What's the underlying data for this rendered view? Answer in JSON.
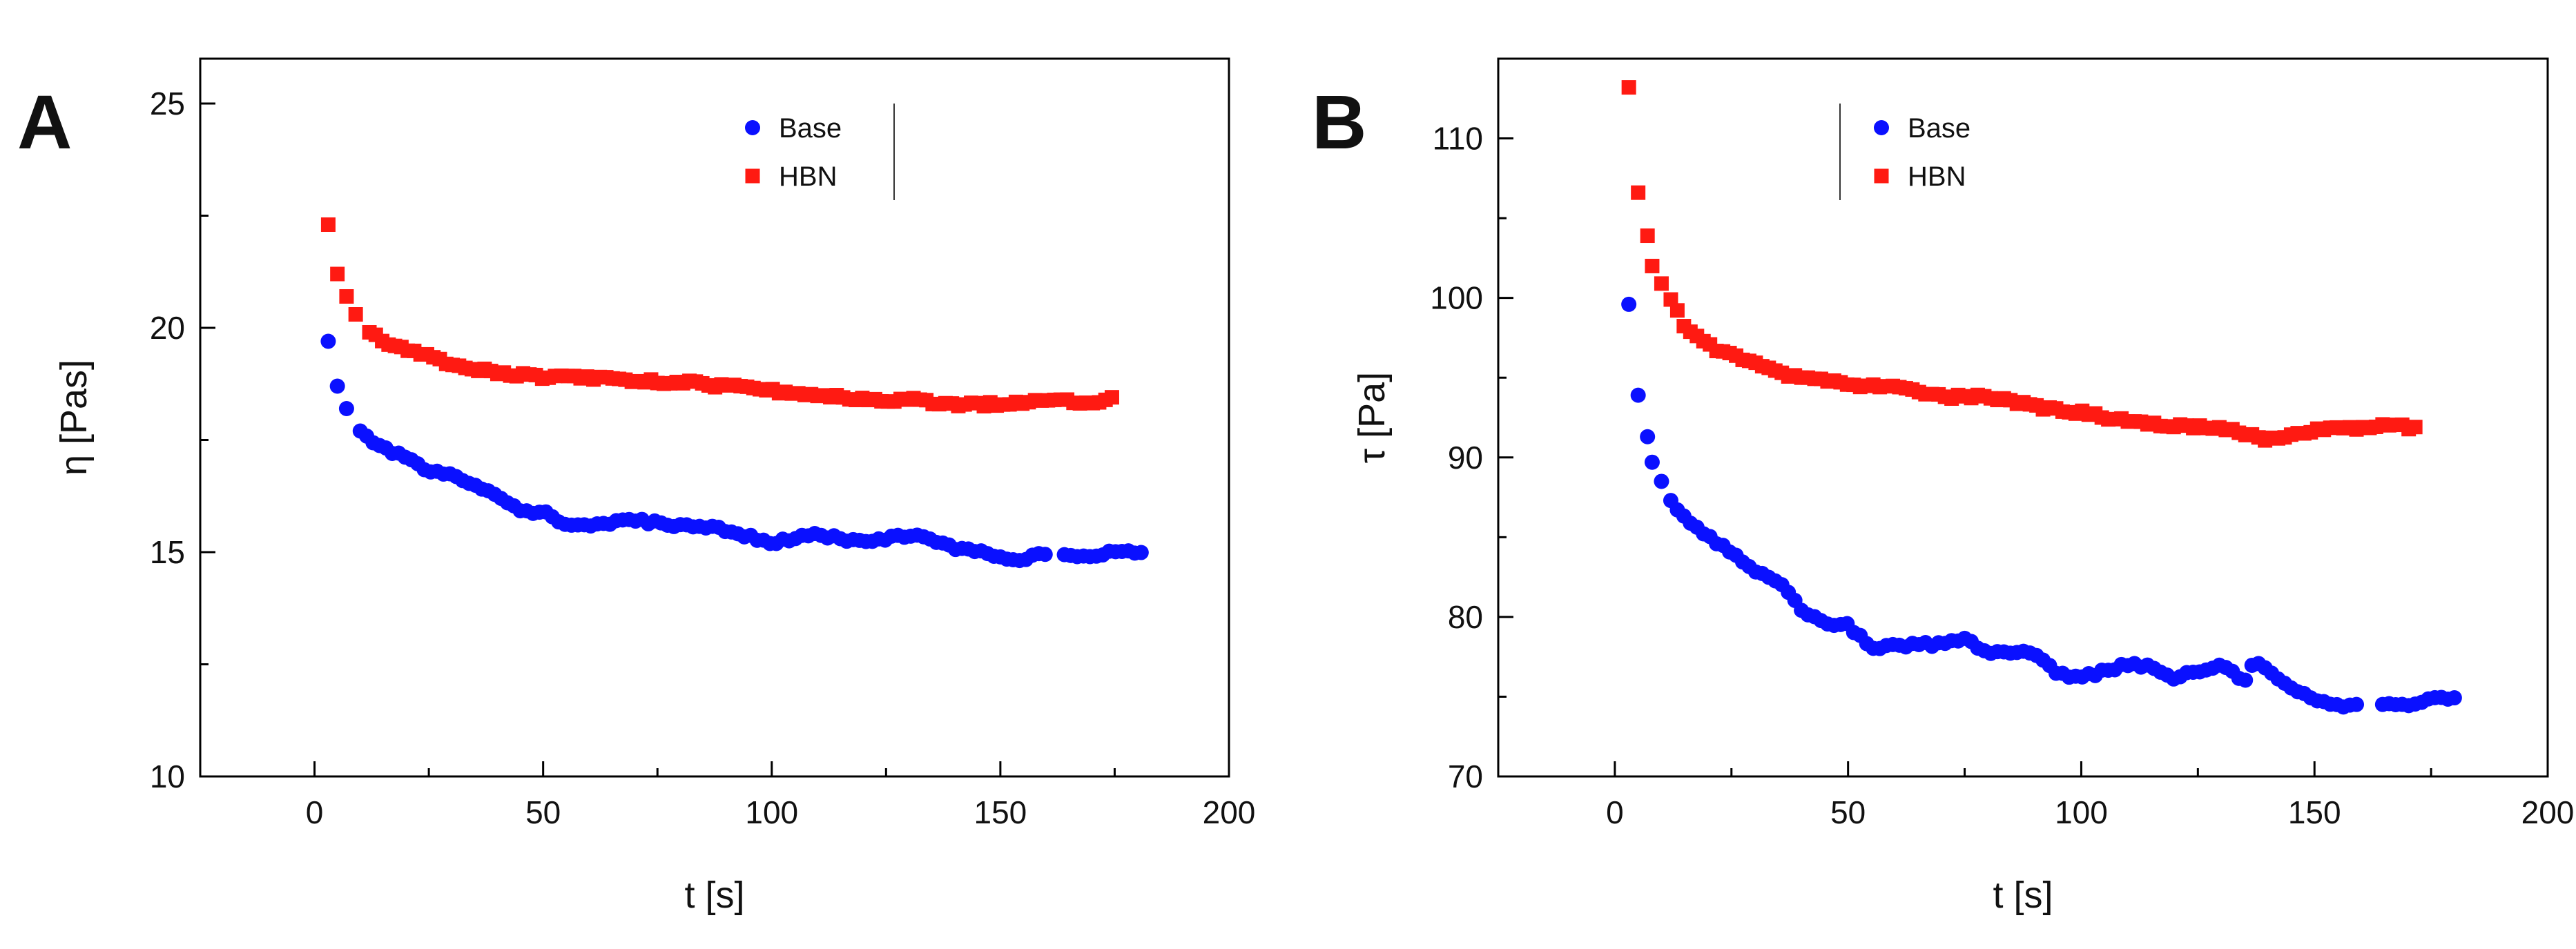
{
  "colors": {
    "Base": "#0a10ff",
    "HBN": "#ff1a12"
  },
  "chart_data": [
    {
      "panel": "A",
      "type": "scatter",
      "xlabel": "t [s]",
      "ylabel": "η [Pas]",
      "xlim": [
        -25,
        200
      ],
      "ylim": [
        10,
        26
      ],
      "xticks": [
        0,
        50,
        100,
        150,
        200
      ],
      "yticks": [
        10,
        15,
        20,
        25
      ],
      "legend_position": "top-center",
      "series": [
        {
          "name": "Base",
          "marker": "circle",
          "anchors": [
            [
              3,
              19.7
            ],
            [
              5,
              18.7
            ],
            [
              7,
              18.2
            ],
            [
              10,
              17.7
            ],
            [
              15,
              17.3
            ],
            [
              20,
              17.1
            ],
            [
              25,
              16.8
            ],
            [
              30,
              16.7
            ],
            [
              35,
              16.5
            ],
            [
              40,
              16.3
            ],
            [
              45,
              15.9
            ],
            [
              50,
              15.9
            ],
            [
              55,
              15.6
            ],
            [
              60,
              15.6
            ],
            [
              70,
              15.7
            ],
            [
              80,
              15.6
            ],
            [
              90,
              15.5
            ],
            [
              100,
              15.2
            ],
            [
              110,
              15.4
            ],
            [
              120,
              15.2
            ],
            [
              130,
              15.4
            ],
            [
              140,
              15.1
            ],
            [
              150,
              14.9
            ],
            [
              155,
              14.85
            ],
            [
              160,
              15.0
            ],
            [
              170,
              14.9
            ],
            [
              175,
              15.0
            ],
            [
              181,
              15.0
            ]
          ],
          "gaps": [
            [
              160,
              164
            ]
          ]
        },
        {
          "name": "HBN",
          "marker": "square",
          "anchors": [
            [
              3,
              22.3
            ],
            [
              5,
              21.2
            ],
            [
              7,
              20.7
            ],
            [
              9,
              20.3
            ],
            [
              12,
              19.9
            ],
            [
              15,
              19.7
            ],
            [
              20,
              19.5
            ],
            [
              30,
              19.2
            ],
            [
              40,
              19.0
            ],
            [
              50,
              18.9
            ],
            [
              60,
              18.9
            ],
            [
              70,
              18.8
            ],
            [
              80,
              18.8
            ],
            [
              90,
              18.7
            ],
            [
              100,
              18.6
            ],
            [
              110,
              18.5
            ],
            [
              120,
              18.4
            ],
            [
              130,
              18.4
            ],
            [
              140,
              18.3
            ],
            [
              150,
              18.3
            ],
            [
              160,
              18.4
            ],
            [
              170,
              18.35
            ],
            [
              175,
              18.45
            ]
          ],
          "gaps": []
        }
      ]
    },
    {
      "panel": "B",
      "type": "scatter",
      "xlabel": "t [s]",
      "ylabel": "τ [Pa]",
      "xlim": [
        -25,
        200
      ],
      "ylim": [
        70,
        115
      ],
      "xticks": [
        0,
        50,
        100,
        150,
        200
      ],
      "yticks": [
        70,
        80,
        90,
        100,
        110
      ],
      "legend_position": "top-center",
      "series": [
        {
          "name": "Base",
          "marker": "circle",
          "anchors": [
            [
              3,
              99.6
            ],
            [
              5,
              93.9
            ],
            [
              7,
              91.3
            ],
            [
              8,
              89.7
            ],
            [
              10,
              88.5
            ],
            [
              12,
              87.3
            ],
            [
              15,
              86.2
            ],
            [
              20,
              85.0
            ],
            [
              25,
              84.0
            ],
            [
              30,
              82.9
            ],
            [
              35,
              82.3
            ],
            [
              40,
              80.5
            ],
            [
              45,
              79.6
            ],
            [
              50,
              79.5
            ],
            [
              55,
              78.0
            ],
            [
              60,
              78.2
            ],
            [
              70,
              78.3
            ],
            [
              75,
              78.6
            ],
            [
              80,
              77.8
            ],
            [
              90,
              77.7
            ],
            [
              95,
              76.5
            ],
            [
              100,
              76.2
            ],
            [
              110,
              77.0
            ],
            [
              115,
              76.9
            ],
            [
              120,
              76.2
            ],
            [
              130,
              76.9
            ],
            [
              135,
              76.0
            ],
            [
              137,
              77.2
            ],
            [
              145,
              75.5
            ],
            [
              150,
              74.8
            ],
            [
              157,
              74.3
            ],
            [
              160,
              74.8
            ],
            [
              165,
              74.5
            ],
            [
              170,
              74.5
            ],
            [
              175,
              74.8
            ],
            [
              181,
              75.0
            ]
          ],
          "gaps": [
            [
              160,
              164
            ]
          ]
        },
        {
          "name": "HBN",
          "marker": "square",
          "anchors": [
            [
              3,
              113.2
            ],
            [
              5,
              106.6
            ],
            [
              7,
              103.9
            ],
            [
              8,
              102.0
            ],
            [
              10,
              100.9
            ],
            [
              12,
              99.9
            ],
            [
              15,
              98.2
            ],
            [
              20,
              97.0
            ],
            [
              25,
              96.4
            ],
            [
              30,
              95.9
            ],
            [
              35,
              95.3
            ],
            [
              40,
              95.0
            ],
            [
              50,
              94.6
            ],
            [
              60,
              94.4
            ],
            [
              70,
              93.8
            ],
            [
              80,
              93.8
            ],
            [
              90,
              93.2
            ],
            [
              100,
              92.8
            ],
            [
              110,
              92.3
            ],
            [
              120,
              92.0
            ],
            [
              130,
              91.9
            ],
            [
              135,
              91.5
            ],
            [
              140,
              91.1
            ],
            [
              145,
              91.3
            ],
            [
              150,
              91.7
            ],
            [
              160,
              91.9
            ],
            [
              165,
              92.1
            ],
            [
              172,
              91.8
            ]
          ],
          "gaps": []
        }
      ]
    }
  ]
}
